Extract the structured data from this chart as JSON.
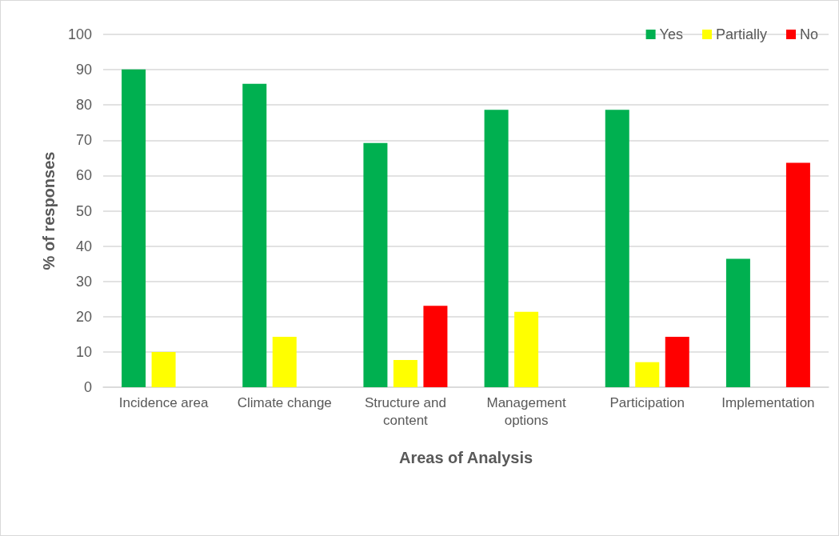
{
  "chart_data": {
    "type": "bar",
    "xlabel": "Areas of Analysis",
    "ylabel": "% of responses",
    "categories": [
      "Incidence area",
      "Climate change",
      "Structure and\ncontent",
      "Management\noptions",
      "Participation",
      "Implementation"
    ],
    "series": [
      {
        "name": "Yes",
        "color": "#00b050",
        "values": [
          90.1,
          86.0,
          69.2,
          78.6,
          78.6,
          36.4
        ]
      },
      {
        "name": "Partially",
        "color": "#ffff00",
        "values": [
          10.0,
          14.3,
          7.7,
          21.4,
          7.1,
          null
        ]
      },
      {
        "name": "No",
        "color": "#ff0000",
        "values": [
          null,
          null,
          23.1,
          null,
          14.3,
          63.6
        ]
      }
    ],
    "ylim": [
      0,
      100
    ],
    "yticks": [
      0,
      10,
      20,
      30,
      40,
      50,
      60,
      70,
      80,
      90,
      100
    ],
    "grid": "y",
    "legend": "top right"
  }
}
